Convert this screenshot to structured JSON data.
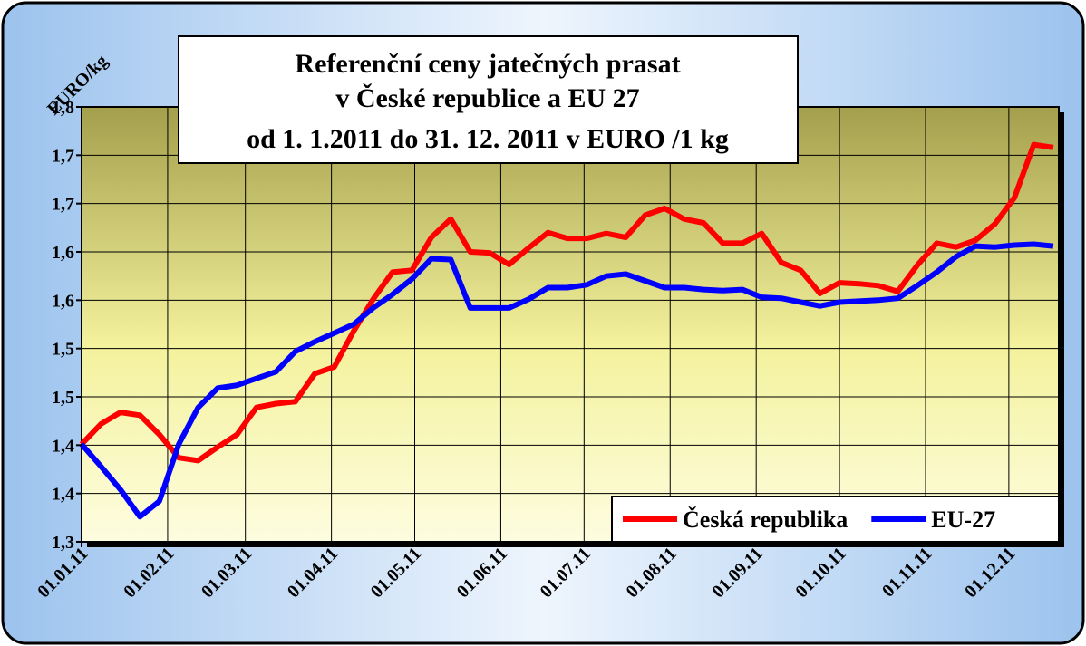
{
  "chart_data": {
    "type": "line",
    "title": [
      "Referenční ceny jatečných prasat",
      "v České republice a EU 27",
      "od 1. 1.2011 do 31. 12. 2011 v EURO /1 kg"
    ],
    "y_label": "EURO/kg",
    "x": [
      "01.01.11",
      "08.01.11",
      "15.01.11",
      "22.01.11",
      "29.01.11",
      "05.02.11",
      "12.02.11",
      "19.02.11",
      "26.02.11",
      "05.03.11",
      "12.03.11",
      "19.03.11",
      "26.03.11",
      "02.04.11",
      "09.04.11",
      "16.04.11",
      "23.04.11",
      "30.04.11",
      "07.05.11",
      "14.05.11",
      "21.05.11",
      "28.05.11",
      "04.06.11",
      "11.06.11",
      "18.06.11",
      "25.06.11",
      "02.07.11",
      "09.07.11",
      "16.07.11",
      "23.07.11",
      "30.07.11",
      "06.08.11",
      "13.08.11",
      "20.08.11",
      "27.08.11",
      "03.09.11",
      "10.09.11",
      "17.09.11",
      "24.09.11",
      "01.10.11",
      "08.10.11",
      "15.10.11",
      "22.10.11",
      "29.10.11",
      "05.11.11",
      "12.11.11",
      "19.11.11",
      "26.11.11",
      "03.12.11",
      "10.12.11",
      "17.12.11"
    ],
    "series": [
      {
        "name": "Česká republika",
        "color": "#ff0000",
        "values": [
          1.401,
          1.422,
          1.434,
          1.431,
          1.411,
          1.387,
          1.384,
          1.398,
          1.411,
          1.439,
          1.443,
          1.445,
          1.474,
          1.481,
          1.518,
          1.551,
          1.579,
          1.581,
          1.615,
          1.634,
          1.6,
          1.599,
          1.587,
          1.604,
          1.62,
          1.614,
          1.614,
          1.619,
          1.615,
          1.638,
          1.645,
          1.634,
          1.63,
          1.609,
          1.609,
          1.619,
          1.589,
          1.581,
          1.557,
          1.568,
          1.567,
          1.565,
          1.559,
          1.586,
          1.609,
          1.605,
          1.612,
          1.629,
          1.656,
          1.711,
          1.708
        ]
      },
      {
        "name": "EU-27",
        "color": "#0000ff",
        "values": [
          1.401,
          1.378,
          1.354,
          1.326,
          1.342,
          1.401,
          1.439,
          1.459,
          1.462,
          1.469,
          1.476,
          1.497,
          1.507,
          1.516,
          1.525,
          1.542,
          1.556,
          1.572,
          1.593,
          1.592,
          1.542,
          1.542,
          1.542,
          1.551,
          1.563,
          1.563,
          1.566,
          1.575,
          1.577,
          1.57,
          1.563,
          1.563,
          1.561,
          1.56,
          1.561,
          1.553,
          1.552,
          1.548,
          1.544,
          1.548,
          1.549,
          1.55,
          1.552,
          1.565,
          1.579,
          1.595,
          1.606,
          1.605,
          1.607,
          1.608,
          1.606
        ]
      }
    ],
    "xlim": [
      "01.01.11",
      "19.12.11"
    ],
    "xticks": [
      "01.01.11",
      "01.02.11",
      "01.03.11",
      "01.04.11",
      "01.05.11",
      "01.06.11",
      "01.07.11",
      "01.08.11",
      "01.09.11",
      "01.10.11",
      "01.11.11",
      "01.12.11"
    ],
    "ylim": [
      1.3,
      1.75
    ],
    "yticks": [
      {
        "value": 1.3,
        "label": "1,3"
      },
      {
        "value": 1.35,
        "label": "1,4"
      },
      {
        "value": 1.4,
        "label": "1,4"
      },
      {
        "value": 1.45,
        "label": "1,5"
      },
      {
        "value": 1.5,
        "label": "1,5"
      },
      {
        "value": 1.55,
        "label": "1,6"
      },
      {
        "value": 1.6,
        "label": "1,6"
      },
      {
        "value": 1.65,
        "label": "1,7"
      },
      {
        "value": 1.7,
        "label": "1,7"
      },
      {
        "value": 1.75,
        "label": "1,8"
      }
    ],
    "grid": true,
    "legend": "lower right"
  }
}
